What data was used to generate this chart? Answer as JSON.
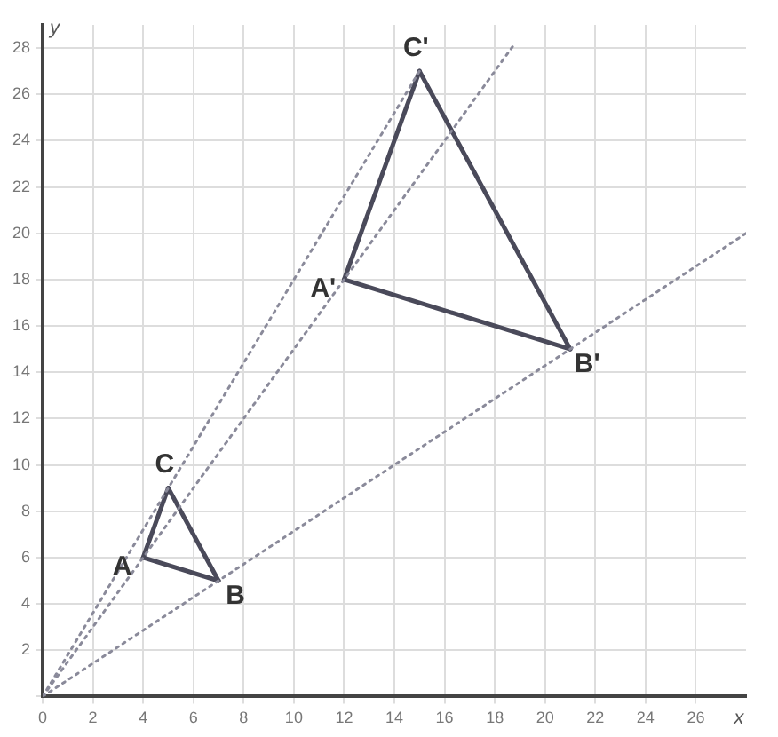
{
  "chart_data": {
    "type": "line",
    "xlabel": "x",
    "ylabel": "y",
    "xlim": [
      0,
      28
    ],
    "ylim": [
      0,
      29
    ],
    "xticks": [
      0,
      2,
      4,
      6,
      8,
      10,
      12,
      14,
      16,
      18,
      20,
      22,
      24,
      26
    ],
    "yticks": [
      {
        "value": 0,
        "label": null
      },
      2,
      4,
      6,
      8,
      10,
      12,
      14,
      16,
      18,
      20,
      22,
      24,
      26,
      28
    ],
    "grid": true,
    "legend": false,
    "marker": "none",
    "series": [
      {
        "color": "#8a8a9a",
        "line_style": "dotted",
        "x": [
          0,
          18.8
        ],
        "values": [
          0,
          28.2
        ]
      },
      {
        "color": "#8a8a9a",
        "line_style": "dotted",
        "x": [
          0,
          15
        ],
        "values": [
          0,
          27
        ]
      },
      {
        "color": "#8a8a9a",
        "line_style": "dotted",
        "x": [
          0,
          28
        ],
        "values": [
          0,
          20
        ]
      },
      {
        "color": "#4a4a5a",
        "line_style": "solid",
        "x": [
          4,
          7
        ],
        "values": [
          6,
          5
        ]
      },
      {
        "color": "#4a4a5a",
        "line_style": "solid",
        "x": [
          5,
          7
        ],
        "values": [
          9,
          5
        ]
      },
      {
        "color": "#4a4a5a",
        "line_style": "solid",
        "x": [
          4,
          5
        ],
        "values": [
          6,
          9
        ]
      },
      {
        "color": "#4a4a5a",
        "line_style": "solid",
        "x": [
          12,
          21
        ],
        "values": [
          18,
          15
        ]
      },
      {
        "color": "#4a4a5a",
        "line_style": "solid",
        "x": [
          15,
          21
        ],
        "values": [
          27,
          15
        ]
      },
      {
        "color": "#4a4a5a",
        "line_style": "solid",
        "x": [
          12,
          15
        ],
        "values": [
          18,
          27
        ]
      }
    ],
    "annotations": [
      {
        "text": "A",
        "x": 4,
        "y": 6
      },
      {
        "text": "B",
        "x": 7,
        "y": 5
      },
      {
        "text": "C",
        "x": 5,
        "y": 9
      },
      {
        "text": "A'",
        "x": 12,
        "y": 18
      },
      {
        "text": "B'",
        "x": 21,
        "y": 15
      },
      {
        "text": "C'",
        "x": 15,
        "y": 27
      }
    ]
  }
}
